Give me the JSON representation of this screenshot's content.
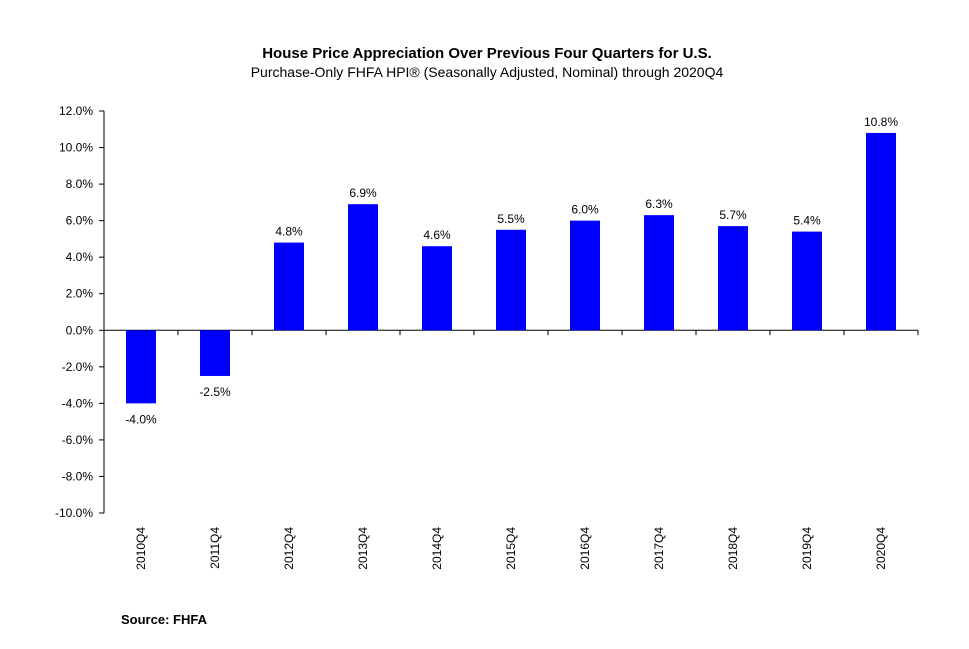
{
  "chart_data": {
    "type": "bar",
    "title": "House Price Appreciation Over Previous Four Quarters for U.S.",
    "subtitle": "Purchase-Only FHFA HPI® (Seasonally Adjusted, Nominal) through 2020Q4",
    "categories": [
      "2010Q4",
      "2011Q4",
      "2012Q4",
      "2013Q4",
      "2014Q4",
      "2015Q4",
      "2016Q4",
      "2017Q4",
      "2018Q4",
      "2019Q4",
      "2020Q4"
    ],
    "values": [
      -4.0,
      -2.5,
      4.8,
      6.9,
      4.6,
      5.5,
      6.0,
      6.3,
      5.7,
      5.4,
      10.8
    ],
    "data_labels": [
      "-4.0%",
      "-2.5%",
      "4.8%",
      "6.9%",
      "4.6%",
      "5.5%",
      "6.0%",
      "6.3%",
      "5.7%",
      "5.4%",
      "10.8%"
    ],
    "ylim": [
      -10,
      12
    ],
    "yticks": [
      12,
      10,
      8,
      6,
      4,
      2,
      0,
      -2,
      -4,
      -6,
      -8,
      -10
    ],
    "ytick_labels": [
      "12.0%",
      "10.0%",
      "8.0%",
      "6.0%",
      "4.0%",
      "2.0%",
      "0.0%",
      "-2.0%",
      "-4.0%",
      "-6.0%",
      "-8.0%",
      "-10.0%"
    ],
    "xlabel": "",
    "ylabel": "",
    "bar_color": "#0000ff",
    "grid": false,
    "legend": "none"
  },
  "source": "Source:  FHFA"
}
